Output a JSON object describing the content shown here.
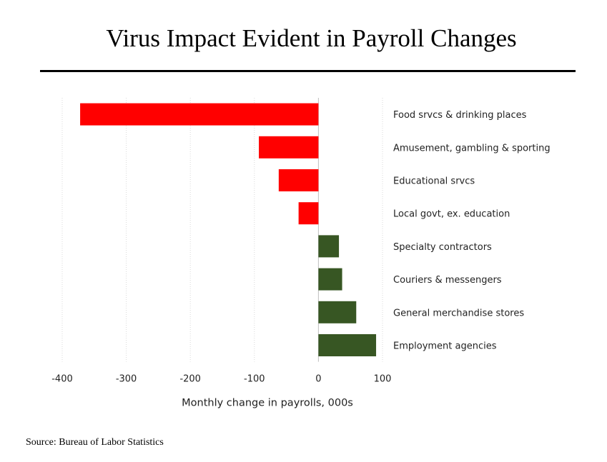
{
  "title": "Virus Impact Evident in Payroll Changes",
  "source": "Source: Bureau of Labor Statistics",
  "chart_data": {
    "type": "bar",
    "orientation": "horizontal",
    "categories": [
      "Food srvcs & drinking places",
      "Amusement, gambling & sporting",
      "Educational srvcs",
      "Local govt, ex. education",
      "Specialty contractors",
      "Couriers & messengers",
      "General merchandise stores",
      "Employment agencies"
    ],
    "values": [
      -372,
      -93,
      -62,
      -31,
      32,
      37,
      59,
      90
    ],
    "xlabel": "Monthly change in payrolls, 000s",
    "ylabel": "",
    "xlim": [
      -400,
      100
    ],
    "xticks": [
      "-400",
      "-300",
      "-200",
      "-100",
      "0",
      "100"
    ],
    "xtick_values": [
      -400,
      -300,
      -200,
      -100,
      0,
      100
    ],
    "grid": "vertical dotted",
    "colors": {
      "negative": "#ff0000",
      "positive": "#375623",
      "grid": "#d9d9d9",
      "axis": "#bfbfbf"
    }
  }
}
